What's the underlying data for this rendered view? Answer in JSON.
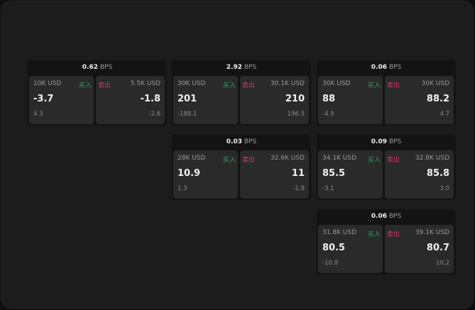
{
  "labels": {
    "buy": "买入",
    "sell": "卖出",
    "unit": "BPS"
  },
  "colors": {
    "buy": "#2fa35c",
    "sell": "#d6386a",
    "background": "#1c1c1c",
    "panel": "#2a2a2a"
  },
  "quotes": [
    {
      "spread": "0.62",
      "bid": {
        "size": "10K USD",
        "price": "-3.7",
        "change": "4.3"
      },
      "ask": {
        "size": "5.5K USD",
        "price": "-1.8",
        "change": "-2.6"
      }
    },
    {
      "spread": "2.92",
      "bid": {
        "size": "30K USD",
        "price": "201",
        "change": "-188.1"
      },
      "ask": {
        "size": "30.1K USD",
        "price": "210",
        "change": "196.5"
      }
    },
    {
      "spread": "0.06",
      "bid": {
        "size": "30K USD",
        "price": "88",
        "change": "-4.9"
      },
      "ask": {
        "size": "30K USD",
        "price": "88.2",
        "change": "4.7"
      }
    },
    {
      "spread": "0.03",
      "bid": {
        "size": "28K USD",
        "price": "10.9",
        "change": "1.3"
      },
      "ask": {
        "size": "32.6K USD",
        "price": "11",
        "change": "-1.8"
      }
    },
    {
      "spread": "0.09",
      "bid": {
        "size": "34.1K USD",
        "price": "85.5",
        "change": "-3.1"
      },
      "ask": {
        "size": "32.8K USD",
        "price": "85.8",
        "change": "3.0"
      }
    },
    {
      "spread": "0.06",
      "bid": {
        "size": "31.8K USD",
        "price": "80.5",
        "change": "-10.8"
      },
      "ask": {
        "size": "39.1K USD",
        "price": "80.7",
        "change": "10.2"
      }
    }
  ]
}
